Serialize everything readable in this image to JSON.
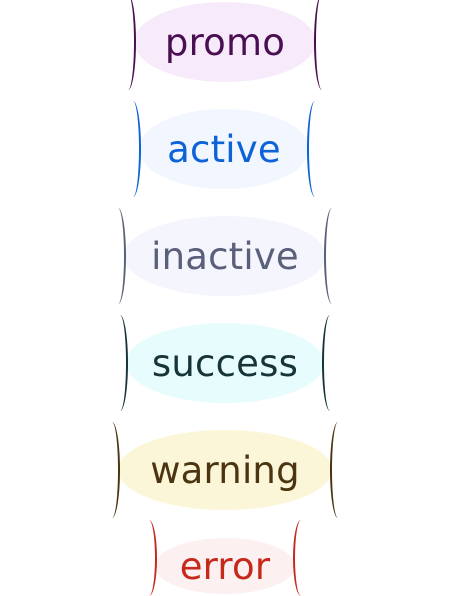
{
  "badges": [
    {
      "id": "promo",
      "label": "promo",
      "text_color": "#4a0f52",
      "bg_color": "#f7ebfb"
    },
    {
      "id": "active",
      "label": "active",
      "text_color": "#0d63d6",
      "bg_color": "#f1f6ff"
    },
    {
      "id": "inactive",
      "label": "inactive",
      "text_color": "#5a607a",
      "bg_color": "#f4f5fd"
    },
    {
      "id": "success",
      "label": "success",
      "text_color": "#173438",
      "bg_color": "#e7fcfd"
    },
    {
      "id": "warning",
      "label": "warning",
      "text_color": "#4b3511",
      "bg_color": "#fcf6d8"
    },
    {
      "id": "error",
      "label": "error",
      "text_color": "#c6281c",
      "bg_color": "#fcf0f1"
    }
  ]
}
